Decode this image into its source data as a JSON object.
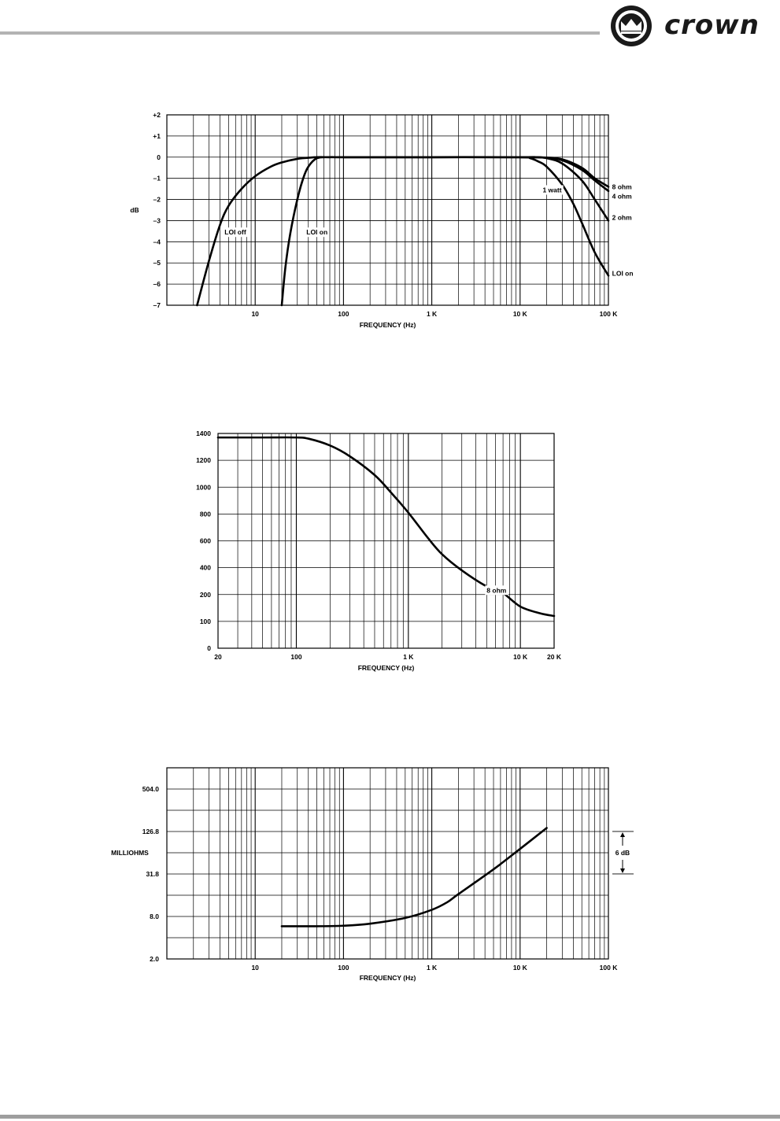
{
  "brand": {
    "logo_text": "crown"
  },
  "chart_data": [
    {
      "type": "line",
      "xscale": "log",
      "xlim": [
        1,
        100000
      ],
      "ylim": [
        -7,
        2
      ],
      "xlabel": "FREQUENCY (Hz)",
      "ylabel": "dB",
      "x_ticks": [
        {
          "value": 10,
          "label": "10"
        },
        {
          "value": 100,
          "label": "100"
        },
        {
          "value": 1000,
          "label": "1 K"
        },
        {
          "value": 10000,
          "label": "10 K"
        },
        {
          "value": 100000,
          "label": "100 K"
        }
      ],
      "y_ticks": [
        {
          "value": 2,
          "label": "+2"
        },
        {
          "value": 1,
          "label": "+1"
        },
        {
          "value": 0,
          "label": "0"
        },
        {
          "value": -1,
          "label": "–1"
        },
        {
          "value": -2,
          "label": "–2"
        },
        {
          "value": -3,
          "label": "–3"
        },
        {
          "value": -4,
          "label": "–4"
        },
        {
          "value": -5,
          "label": "–5"
        },
        {
          "value": -6,
          "label": "–6"
        },
        {
          "value": -7,
          "label": "–7"
        }
      ],
      "grid": true,
      "series": [
        {
          "x": [
            2.2,
            3,
            4,
            5,
            7,
            10,
            15,
            20,
            30,
            40,
            50,
            70,
            100,
            1000,
            10000,
            20000,
            30000,
            50000,
            70000,
            100000
          ],
          "y": [
            -7,
            -4.9,
            -3.2,
            -2.3,
            -1.5,
            -0.9,
            -0.45,
            -0.25,
            -0.08,
            -0.03,
            0,
            0,
            0,
            0,
            0,
            -0.02,
            -0.1,
            -0.5,
            -1.0,
            -1.4
          ]
        },
        {
          "x": [
            20,
            22,
            25,
            30,
            35,
            40,
            50,
            70,
            100,
            1000,
            10000,
            20000,
            30000,
            50000,
            70000,
            100000
          ],
          "y": [
            -7,
            -5.2,
            -3.6,
            -2.0,
            -1.0,
            -0.45,
            -0.05,
            0,
            0,
            0,
            0,
            -0.03,
            -0.15,
            -0.6,
            -1.1,
            -1.6
          ]
        },
        {
          "x": [
            100,
            1000,
            10000,
            15000,
            20000,
            30000,
            50000,
            70000,
            100000
          ],
          "y": [
            0,
            0,
            0,
            0,
            -0.05,
            -0.3,
            -1.1,
            -2.0,
            -3.0
          ]
        },
        {
          "x": [
            100,
            1000,
            10000,
            13000,
            16000,
            20000,
            30000,
            40000,
            50000,
            70000,
            100000
          ],
          "y": [
            0,
            0,
            0,
            -0.05,
            -0.2,
            -0.45,
            -1.3,
            -2.2,
            -3.1,
            -4.5,
            -5.6
          ]
        }
      ],
      "annotations": [
        {
          "text": "LOI  off",
          "x": 4.5,
          "y": -3.55
        },
        {
          "text": "LOI  on",
          "x": 38,
          "y": -3.55
        },
        {
          "text": "1 watt",
          "x": 18000,
          "y": -1.55
        },
        {
          "text": "8 ohm",
          "x": 110000,
          "y": -1.4
        },
        {
          "text": "4 ohm",
          "x": 110000,
          "y": -1.85
        },
        {
          "text": "2 ohm",
          "x": 110000,
          "y": -2.85
        },
        {
          "text": "LOI on",
          "x": 110000,
          "y": -5.5
        }
      ]
    },
    {
      "type": "line",
      "xscale": "log",
      "xlim": [
        20,
        20000
      ],
      "xlabel": "FREQUENCY (Hz)",
      "ylabel": "",
      "x_ticks": [
        {
          "value": 20,
          "label": "20"
        },
        {
          "value": 100,
          "label": "100"
        },
        {
          "value": 1000,
          "label": "1 K"
        },
        {
          "value": 10000,
          "label": "10 K"
        },
        {
          "value": 20000,
          "label": "20 K"
        }
      ],
      "y_ticks": [
        {
          "value": 1400,
          "label": "1400"
        },
        {
          "value": 1200,
          "label": "1200"
        },
        {
          "value": 1000,
          "label": "1000"
        },
        {
          "value": 800,
          "label": "800"
        },
        {
          "value": 600,
          "label": "600"
        },
        {
          "value": 400,
          "label": "400"
        },
        {
          "value": 200,
          "label": "200"
        },
        {
          "value": 100,
          "label": "100"
        },
        {
          "value": 0,
          "label": "0"
        }
      ],
      "grid": true,
      "series": [
        {
          "x": [
            20,
            50,
            100,
            130,
            200,
            300,
            500,
            700,
            1000,
            1500,
            2000,
            3000,
            5000,
            7000,
            10000,
            15000,
            20000
          ],
          "y": [
            1370,
            1370,
            1370,
            1360,
            1310,
            1230,
            1090,
            960,
            810,
            620,
            500,
            380,
            260,
            210,
            155,
            130,
            120
          ]
        }
      ],
      "annotations": [
        {
          "text": "8 ohm",
          "x": 5000,
          "y": 232
        }
      ]
    },
    {
      "type": "line",
      "xscale": "log",
      "yscale": "log",
      "xlim": [
        1,
        100000
      ],
      "ylim": [
        2.0,
        1008
      ],
      "xlabel": "FREQUENCY (Hz)",
      "ylabel": "MILLIOHMS",
      "x_ticks": [
        {
          "value": 10,
          "label": "10"
        },
        {
          "value": 100,
          "label": "100"
        },
        {
          "value": 1000,
          "label": "1 K"
        },
        {
          "value": 10000,
          "label": "10 K"
        },
        {
          "value": 100000,
          "label": "100 K"
        }
      ],
      "y_ticks": [
        {
          "value": 504.0,
          "label": "504.0"
        },
        {
          "value": 126.8,
          "label": "126.8"
        },
        {
          "value": 31.8,
          "label": "31.8"
        },
        {
          "value": 8.0,
          "label": "8.0"
        },
        {
          "value": 2.0,
          "label": "2.0"
        }
      ],
      "grid": true,
      "series": [
        {
          "x": [
            20,
            50,
            100,
            200,
            500,
            1000,
            1500,
            2000,
            5000,
            10000,
            20000
          ],
          "y": [
            5.8,
            5.8,
            5.9,
            6.3,
            7.6,
            9.9,
            12.7,
            16.5,
            37,
            72,
            142
          ]
        }
      ],
      "scale_marker": {
        "label": "6 dB",
        "from": 126.8,
        "to": 31.8
      }
    }
  ]
}
